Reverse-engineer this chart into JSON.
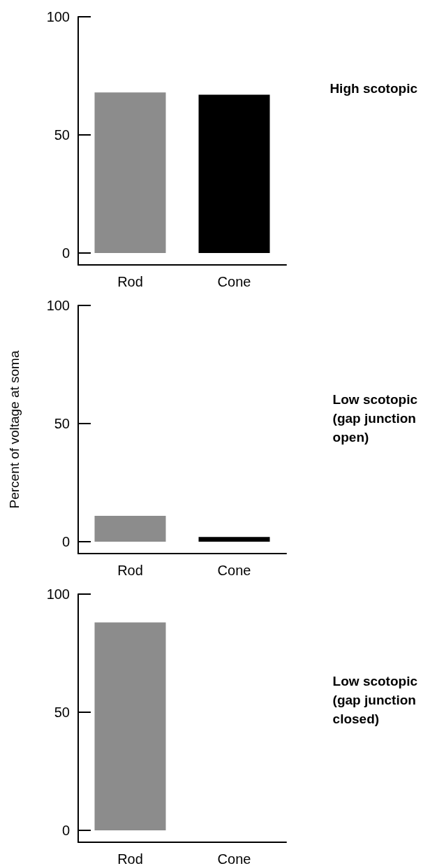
{
  "chart_data": [
    {
      "type": "bar",
      "annotations": [
        "High scotopic"
      ],
      "categories": [
        "Rod",
        "Cone"
      ],
      "colors": [
        "#8c8c8c",
        "#000000"
      ],
      "values": [
        68,
        67
      ],
      "ylim": [
        -5,
        100
      ],
      "yticks": [
        0,
        50,
        100
      ]
    },
    {
      "type": "bar",
      "annotations": [
        "Low scotopic\n(gap junction\nopen)"
      ],
      "ylabel": "Percent of voltage at soma",
      "categories": [
        "Rod",
        "Cone"
      ],
      "colors": [
        "#8c8c8c",
        "#000000"
      ],
      "values": [
        11,
        2
      ],
      "ylim": [
        -5,
        100
      ],
      "yticks": [
        0,
        50,
        100
      ]
    },
    {
      "type": "bar",
      "annotations": [
        "Low scotopic\n(gap junction\nclosed)"
      ],
      "categories": [
        "Rod",
        "Cone"
      ],
      "colors": [
        "#8c8c8c",
        "#000000"
      ],
      "values": [
        88,
        0
      ],
      "ylim": [
        -5,
        100
      ],
      "yticks": [
        0,
        50,
        100
      ]
    }
  ]
}
